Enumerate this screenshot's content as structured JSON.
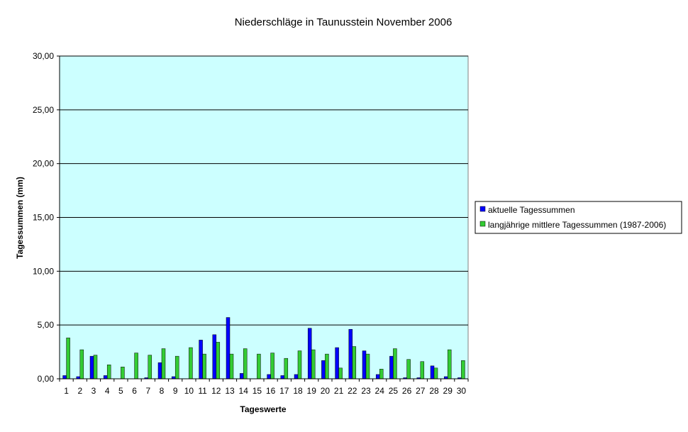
{
  "chart_data": {
    "type": "bar",
    "title": "Niederschläge in Taunusstein  November  2006",
    "xlabel": "Tageswerte",
    "ylabel": "Tagessummen (mm)",
    "ylim": [
      0,
      30
    ],
    "yticks": [
      "0,00",
      "5,00",
      "10,00",
      "15,00",
      "20,00",
      "25,00",
      "30,00"
    ],
    "grid": true,
    "legend_position": "right",
    "plot_background": "#CCFFFF",
    "categories": [
      "1",
      "2",
      "3",
      "4",
      "5",
      "6",
      "7",
      "8",
      "9",
      "10",
      "11",
      "12",
      "13",
      "14",
      "15",
      "16",
      "17",
      "18",
      "19",
      "20",
      "21",
      "22",
      "23",
      "24",
      "25",
      "26",
      "27",
      "28",
      "29",
      "30"
    ],
    "series": [
      {
        "name": "aktuelle Tagessummen",
        "color": "#0000FF",
        "values": [
          0.3,
          0.2,
          2.1,
          0.3,
          0.0,
          0.0,
          0.1,
          1.5,
          0.2,
          0.0,
          3.6,
          4.1,
          5.7,
          0.5,
          0.0,
          0.4,
          0.3,
          0.4,
          4.7,
          1.7,
          2.9,
          4.6,
          2.6,
          0.4,
          2.1,
          0.1,
          0.1,
          1.2,
          0.2,
          0.1
        ]
      },
      {
        "name": "langjährige mittlere Tagessummen (1987-2006)",
        "color": "#33CC33",
        "values": [
          3.8,
          2.7,
          2.2,
          1.3,
          1.1,
          2.4,
          2.2,
          2.8,
          2.1,
          2.9,
          2.3,
          3.4,
          2.3,
          2.8,
          2.3,
          2.4,
          1.9,
          2.6,
          2.7,
          2.3,
          1.0,
          3.0,
          2.3,
          0.9,
          2.8,
          1.8,
          1.6,
          1.0,
          2.7,
          1.7
        ]
      }
    ]
  }
}
